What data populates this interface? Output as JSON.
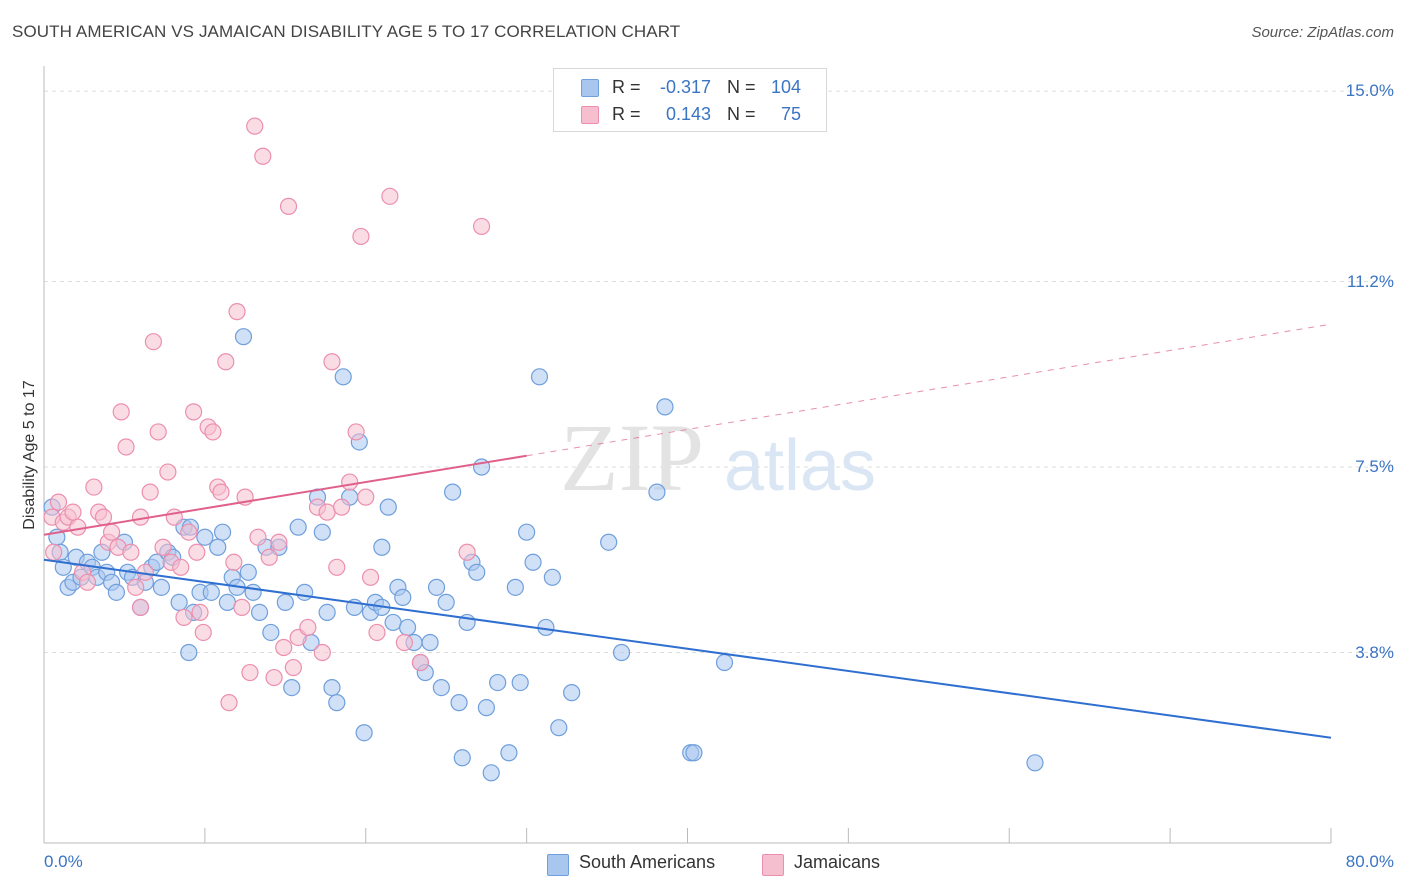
{
  "header": {
    "title": "SOUTH AMERICAN VS JAMAICAN DISABILITY AGE 5 TO 17 CORRELATION CHART",
    "source": "Source: ZipAtlas.com"
  },
  "watermark": {
    "part1": "ZIP",
    "part2": "atlas"
  },
  "colors": {
    "blue_fill": "#a9c6ee",
    "blue_edge": "#6f9fdc",
    "blue_line": "#2f6fd0",
    "pink_fill": "#f6bfd0",
    "pink_edge": "#ec8fae",
    "pink_line": "#e0608c",
    "tick_text": "#3a74c4",
    "grid": "#dddddd"
  },
  "stats": [
    {
      "r_label": "R =",
      "r_value": "-0.317",
      "n_label": "N =",
      "n_value": "104"
    },
    {
      "r_label": "R =",
      "r_value": "0.143",
      "n_label": "N =",
      "n_value": "75"
    }
  ],
  "legend": {
    "blue_label": "South Americans",
    "pink_label": "Jamaicans"
  },
  "chart_data": {
    "type": "scatter",
    "title": "SOUTH AMERICAN VS JAMAICAN DISABILITY AGE 5 TO 17 CORRELATION CHART",
    "xlabel": "",
    "ylabel": "Disability Age 5 to 17",
    "xlim": [
      0,
      80
    ],
    "ylim": [
      0,
      15.5
    ],
    "x_tick_labels": [
      "0.0%",
      "80.0%"
    ],
    "y_ticks": [
      3.8,
      7.5,
      11.2,
      15.0
    ],
    "y_tick_labels": [
      "3.8%",
      "7.5%",
      "11.2%",
      "15.0%"
    ],
    "grid": true,
    "legend_position": "bottom-center",
    "series": [
      {
        "name": "South Americans",
        "color": "#a9c6ee",
        "r": -0.317,
        "n": 104,
        "trend": {
          "x": [
            0,
            80
          ],
          "y": [
            5.65,
            2.1
          ]
        },
        "points": [
          [
            0.5,
            6.7
          ],
          [
            0.8,
            6.1
          ],
          [
            1.0,
            5.8
          ],
          [
            1.2,
            5.5
          ],
          [
            1.5,
            5.1
          ],
          [
            1.8,
            5.2
          ],
          [
            2.0,
            5.7
          ],
          [
            2.3,
            5.3
          ],
          [
            2.7,
            5.6
          ],
          [
            3.0,
            5.5
          ],
          [
            3.3,
            5.3
          ],
          [
            3.6,
            5.8
          ],
          [
            3.9,
            5.4
          ],
          [
            4.2,
            5.2
          ],
          [
            4.5,
            5.0
          ],
          [
            5.0,
            6.0
          ],
          [
            5.2,
            5.4
          ],
          [
            5.5,
            5.3
          ],
          [
            6.0,
            4.7
          ],
          [
            6.3,
            5.2
          ],
          [
            6.7,
            5.5
          ],
          [
            7.0,
            5.6
          ],
          [
            7.3,
            5.1
          ],
          [
            7.7,
            5.8
          ],
          [
            8.0,
            5.7
          ],
          [
            8.4,
            4.8
          ],
          [
            8.7,
            6.3
          ],
          [
            9.0,
            3.8
          ],
          [
            9.3,
            4.6
          ],
          [
            9.7,
            5.0
          ],
          [
            10.0,
            6.1
          ],
          [
            10.4,
            5.0
          ],
          [
            10.8,
            5.9
          ],
          [
            11.1,
            6.2
          ],
          [
            11.4,
            4.8
          ],
          [
            11.7,
            5.3
          ],
          [
            12.0,
            5.1
          ],
          [
            12.4,
            10.1
          ],
          [
            12.7,
            5.4
          ],
          [
            13.0,
            5.0
          ],
          [
            13.4,
            4.6
          ],
          [
            13.8,
            5.9
          ],
          [
            14.1,
            4.2
          ],
          [
            14.6,
            5.9
          ],
          [
            15.0,
            4.8
          ],
          [
            15.4,
            3.1
          ],
          [
            15.8,
            6.3
          ],
          [
            16.2,
            5.0
          ],
          [
            16.6,
            4.0
          ],
          [
            17.0,
            6.9
          ],
          [
            17.3,
            6.2
          ],
          [
            17.6,
            4.6
          ],
          [
            17.9,
            3.1
          ],
          [
            18.2,
            2.8
          ],
          [
            18.6,
            9.3
          ],
          [
            19.0,
            6.9
          ],
          [
            19.3,
            4.7
          ],
          [
            19.6,
            8.0
          ],
          [
            19.9,
            2.2
          ],
          [
            20.3,
            4.6
          ],
          [
            20.6,
            4.8
          ],
          [
            21.0,
            5.9
          ],
          [
            21.4,
            6.7
          ],
          [
            21.7,
            4.4
          ],
          [
            22.0,
            5.1
          ],
          [
            22.3,
            4.9
          ],
          [
            22.6,
            4.3
          ],
          [
            23.0,
            4.0
          ],
          [
            23.4,
            3.6
          ],
          [
            23.7,
            3.4
          ],
          [
            24.0,
            4.0
          ],
          [
            24.4,
            5.1
          ],
          [
            24.7,
            3.1
          ],
          [
            25.0,
            4.8
          ],
          [
            25.4,
            7.0
          ],
          [
            25.8,
            2.8
          ],
          [
            26.0,
            1.7
          ],
          [
            26.3,
            4.4
          ],
          [
            26.6,
            5.6
          ],
          [
            26.9,
            5.4
          ],
          [
            27.2,
            7.5
          ],
          [
            27.5,
            2.7
          ],
          [
            27.8,
            1.4
          ],
          [
            28.2,
            3.2
          ],
          [
            28.9,
            1.8
          ],
          [
            29.3,
            5.1
          ],
          [
            29.6,
            3.2
          ],
          [
            30.0,
            6.2
          ],
          [
            30.4,
            5.6
          ],
          [
            30.8,
            9.3
          ],
          [
            31.2,
            4.3
          ],
          [
            31.6,
            5.3
          ],
          [
            32.0,
            2.3
          ],
          [
            32.8,
            3.0
          ],
          [
            35.1,
            6.0
          ],
          [
            35.9,
            3.8
          ],
          [
            38.1,
            7.0
          ],
          [
            38.6,
            8.7
          ],
          [
            40.2,
            1.8
          ],
          [
            40.4,
            1.8
          ],
          [
            42.3,
            3.6
          ],
          [
            61.6,
            1.6
          ],
          [
            9.1,
            6.3
          ],
          [
            21.0,
            4.7
          ]
        ]
      },
      {
        "name": "Jamaicans",
        "color": "#f6bfd0",
        "r": 0.143,
        "n": 75,
        "trend": {
          "x": [
            0,
            80
          ],
          "y": [
            6.15,
            10.35
          ]
        },
        "trend_solid_until_x": 30,
        "points": [
          [
            0.5,
            6.5
          ],
          [
            0.6,
            5.8
          ],
          [
            0.9,
            6.8
          ],
          [
            1.2,
            6.4
          ],
          [
            1.5,
            6.5
          ],
          [
            1.8,
            6.6
          ],
          [
            2.1,
            6.3
          ],
          [
            2.4,
            5.4
          ],
          [
            2.7,
            5.2
          ],
          [
            3.1,
            7.1
          ],
          [
            3.4,
            6.6
          ],
          [
            3.7,
            6.5
          ],
          [
            4.0,
            6.0
          ],
          [
            4.2,
            6.2
          ],
          [
            4.6,
            5.9
          ],
          [
            4.8,
            8.6
          ],
          [
            5.1,
            7.9
          ],
          [
            5.4,
            5.8
          ],
          [
            5.7,
            5.1
          ],
          [
            6.0,
            6.5
          ],
          [
            6.3,
            5.4
          ],
          [
            6.6,
            7.0
          ],
          [
            6.8,
            10.0
          ],
          [
            7.1,
            8.2
          ],
          [
            7.4,
            5.9
          ],
          [
            7.7,
            7.4
          ],
          [
            7.9,
            5.6
          ],
          [
            8.1,
            6.5
          ],
          [
            8.5,
            5.5
          ],
          [
            8.7,
            4.5
          ],
          [
            9.0,
            6.2
          ],
          [
            9.3,
            8.6
          ],
          [
            9.5,
            5.8
          ],
          [
            9.7,
            4.6
          ],
          [
            9.9,
            4.2
          ],
          [
            10.2,
            8.3
          ],
          [
            10.5,
            8.2
          ],
          [
            10.8,
            7.1
          ],
          [
            11.0,
            7.0
          ],
          [
            11.3,
            9.6
          ],
          [
            11.5,
            2.8
          ],
          [
            11.8,
            5.6
          ],
          [
            12.0,
            10.6
          ],
          [
            12.3,
            4.7
          ],
          [
            12.5,
            6.9
          ],
          [
            12.8,
            3.4
          ],
          [
            13.1,
            14.3
          ],
          [
            13.3,
            6.1
          ],
          [
            13.6,
            13.7
          ],
          [
            14.0,
            5.7
          ],
          [
            14.3,
            3.3
          ],
          [
            14.6,
            6.0
          ],
          [
            14.9,
            3.9
          ],
          [
            15.2,
            12.7
          ],
          [
            15.5,
            3.5
          ],
          [
            15.8,
            4.1
          ],
          [
            16.4,
            4.3
          ],
          [
            17.0,
            6.7
          ],
          [
            17.3,
            3.8
          ],
          [
            17.6,
            6.6
          ],
          [
            17.9,
            9.6
          ],
          [
            18.2,
            5.5
          ],
          [
            18.5,
            6.7
          ],
          [
            19.0,
            7.2
          ],
          [
            19.4,
            8.2
          ],
          [
            19.7,
            12.1
          ],
          [
            20.0,
            6.9
          ],
          [
            20.3,
            5.3
          ],
          [
            20.7,
            4.2
          ],
          [
            21.5,
            12.9
          ],
          [
            22.4,
            4.0
          ],
          [
            23.4,
            3.6
          ],
          [
            26.3,
            5.8
          ],
          [
            27.2,
            12.3
          ],
          [
            6.0,
            4.7
          ]
        ]
      }
    ]
  }
}
